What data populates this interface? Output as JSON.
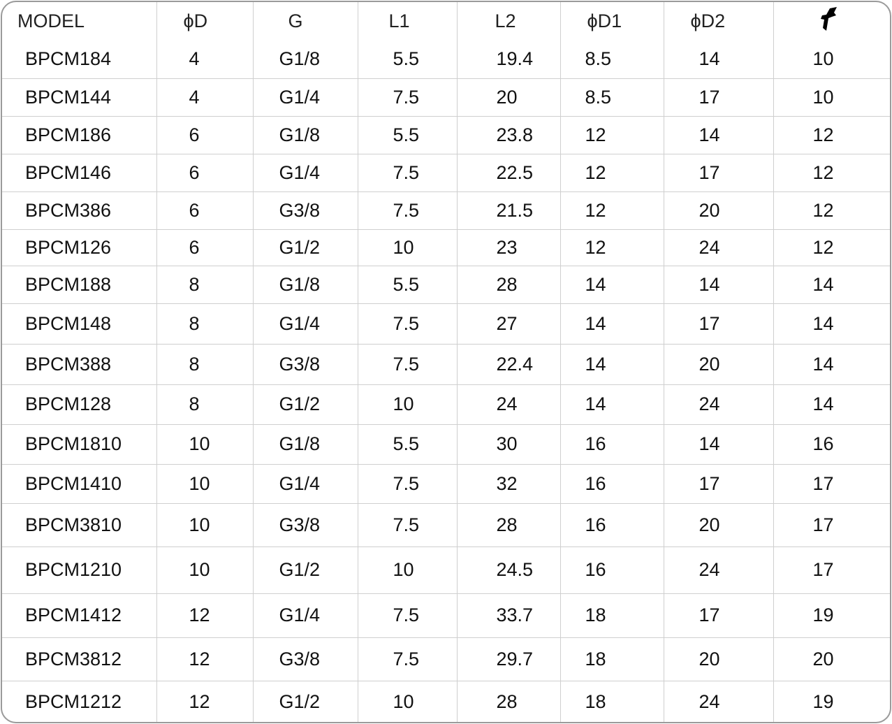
{
  "table": {
    "headers": [
      "MODEL",
      "ϕD",
      "G",
      "L1",
      "L2",
      "ϕD1",
      "ϕD2"
    ],
    "wrench_header_icon": "wrench-icon",
    "rows": [
      [
        "BPCM184",
        "4",
        "G1/8",
        "5.5",
        "19.4",
        "8.5",
        "14",
        "10"
      ],
      [
        "BPCM144",
        "4",
        "G1/4",
        "7.5",
        "20",
        "8.5",
        "17",
        "10"
      ],
      [
        "BPCM186",
        "6",
        "G1/8",
        "5.5",
        "23.8",
        "12",
        "14",
        "12"
      ],
      [
        "BPCM146",
        "6",
        "G1/4",
        "7.5",
        "22.5",
        "12",
        "17",
        "12"
      ],
      [
        "BPCM386",
        "6",
        "G3/8",
        "7.5",
        "21.5",
        "12",
        "20",
        "12"
      ],
      [
        "BPCM126",
        "6",
        "G1/2",
        "10",
        "23",
        "12",
        "24",
        "12"
      ],
      [
        "BPCM188",
        "8",
        "G1/8",
        "5.5",
        "28",
        "14",
        "14",
        "14"
      ],
      [
        "BPCM148",
        "8",
        "G1/4",
        "7.5",
        "27",
        "14",
        "17",
        "14"
      ],
      [
        "BPCM388",
        "8",
        "G3/8",
        "7.5",
        "22.4",
        "14",
        "20",
        "14"
      ],
      [
        "BPCM128",
        "8",
        "G1/2",
        "10",
        "24",
        "14",
        "24",
        "14"
      ],
      [
        "BPCM1810",
        "10",
        "G1/8",
        "5.5",
        "30",
        "16",
        "14",
        "16"
      ],
      [
        "BPCM1410",
        "10",
        "G1/4",
        "7.5",
        "32",
        "16",
        "17",
        "17"
      ],
      [
        "BPCM3810",
        "10",
        "G3/8",
        "7.5",
        "28",
        "16",
        "20",
        "17"
      ],
      [
        "BPCM1210",
        "10",
        "G1/2",
        "10",
        "24.5",
        "16",
        "24",
        "17"
      ],
      [
        "BPCM1412",
        "12",
        "G1/4",
        "7.5",
        "33.7",
        "18",
        "17",
        "19"
      ],
      [
        "BPCM3812",
        "12",
        "G3/8",
        "7.5",
        "29.7",
        "18",
        "20",
        "20"
      ],
      [
        "BPCM1212",
        "12",
        "G1/2",
        "10",
        "28",
        "18",
        "24",
        "19"
      ]
    ]
  }
}
